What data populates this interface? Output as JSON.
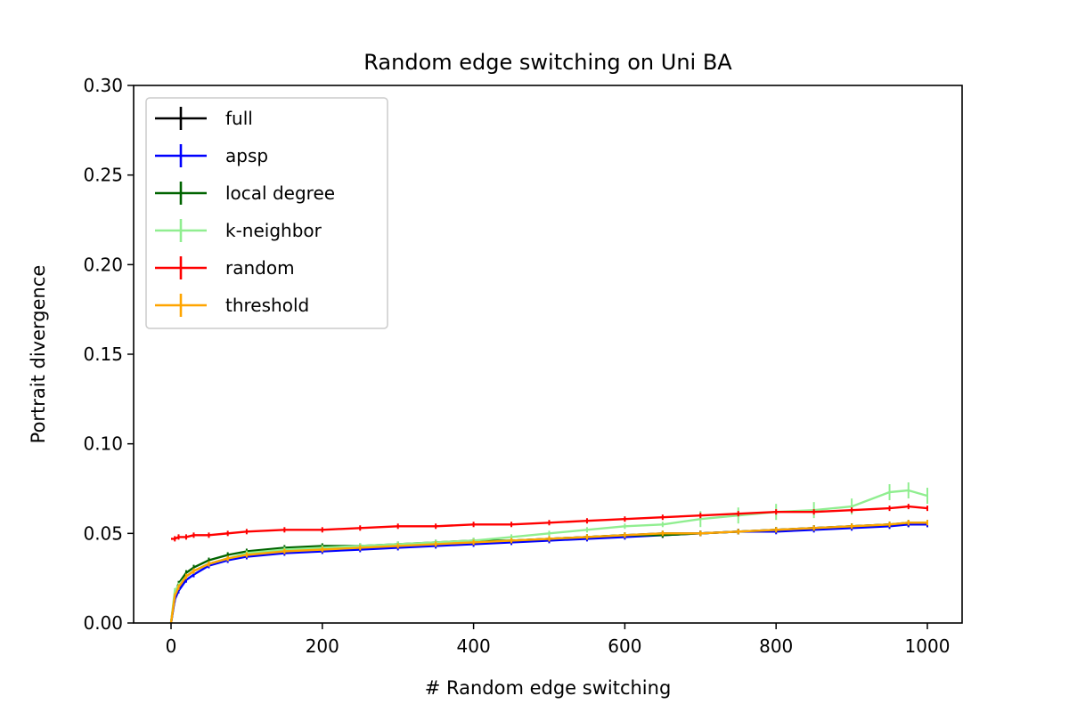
{
  "chart_data": {
    "type": "line",
    "title": "Random edge switching on Uni BA",
    "xlabel": "# Random edge switching",
    "ylabel": "Portrait divergence",
    "xlim": [
      -50,
      1050
    ],
    "ylim": [
      0.0,
      0.3
    ],
    "xticks": [
      0,
      200,
      400,
      600,
      800,
      1000
    ],
    "xtick_labels": [
      "0",
      "200",
      "400",
      "600",
      "800",
      "1000"
    ],
    "yticks": [
      0.0,
      0.05,
      0.1,
      0.15,
      0.2,
      0.25,
      0.3
    ],
    "ytick_labels": [
      "0.00",
      "0.05",
      "0.10",
      "0.15",
      "0.20",
      "0.25",
      "0.30"
    ],
    "grid": false,
    "legend_position": "upper-left",
    "x": [
      0,
      5,
      10,
      20,
      30,
      50,
      75,
      100,
      150,
      200,
      250,
      300,
      350,
      400,
      450,
      500,
      550,
      600,
      650,
      700,
      750,
      800,
      850,
      900,
      950,
      975,
      1000
    ],
    "series": [
      {
        "name": "full",
        "color": "#000000",
        "values": [
          0.0,
          0.014,
          0.019,
          0.026,
          0.029,
          0.033,
          0.036,
          0.038,
          0.04,
          0.041,
          0.042,
          0.043,
          0.044,
          0.045,
          0.046,
          0.047,
          0.048,
          0.049,
          0.05,
          0.05,
          0.051,
          0.052,
          0.053,
          0.054,
          0.055,
          0.055,
          0.055
        ]
      },
      {
        "name": "apsp",
        "color": "#0000ff",
        "values": [
          0.0,
          0.013,
          0.018,
          0.024,
          0.027,
          0.032,
          0.035,
          0.037,
          0.039,
          0.04,
          0.041,
          0.042,
          0.043,
          0.044,
          0.045,
          0.046,
          0.047,
          0.048,
          0.049,
          0.05,
          0.051,
          0.051,
          0.052,
          0.053,
          0.054,
          0.055,
          0.055
        ]
      },
      {
        "name": "local degree",
        "color": "#006400",
        "values": [
          0.0,
          0.016,
          0.022,
          0.028,
          0.031,
          0.035,
          0.038,
          0.04,
          0.042,
          0.043,
          0.043,
          0.044,
          0.045,
          0.046,
          0.046,
          0.047,
          0.048,
          0.049,
          0.049,
          0.05,
          0.051,
          0.052,
          0.053,
          0.054,
          0.055,
          0.056,
          0.056
        ]
      },
      {
        "name": "k-neighbor",
        "color": "#90ee90",
        "values": [
          0.0,
          0.018,
          0.021,
          0.026,
          0.029,
          0.033,
          0.036,
          0.039,
          0.041,
          0.042,
          0.043,
          0.044,
          0.045,
          0.046,
          0.048,
          0.05,
          0.052,
          0.054,
          0.055,
          0.058,
          0.06,
          0.062,
          0.063,
          0.065,
          0.073,
          0.074,
          0.071
        ]
      },
      {
        "name": "random",
        "color": "#ff0000",
        "values": [
          0.047,
          0.047,
          0.048,
          0.048,
          0.049,
          0.049,
          0.05,
          0.051,
          0.052,
          0.052,
          0.053,
          0.054,
          0.054,
          0.055,
          0.055,
          0.056,
          0.057,
          0.058,
          0.059,
          0.06,
          0.061,
          0.062,
          0.062,
          0.063,
          0.064,
          0.065,
          0.064
        ]
      },
      {
        "name": "threshold",
        "color": "#ffa500",
        "values": [
          0.0,
          0.015,
          0.02,
          0.026,
          0.029,
          0.033,
          0.036,
          0.038,
          0.04,
          0.041,
          0.042,
          0.043,
          0.044,
          0.045,
          0.046,
          0.047,
          0.048,
          0.049,
          0.05,
          0.05,
          0.051,
          0.052,
          0.053,
          0.054,
          0.055,
          0.056,
          0.056
        ]
      }
    ]
  }
}
